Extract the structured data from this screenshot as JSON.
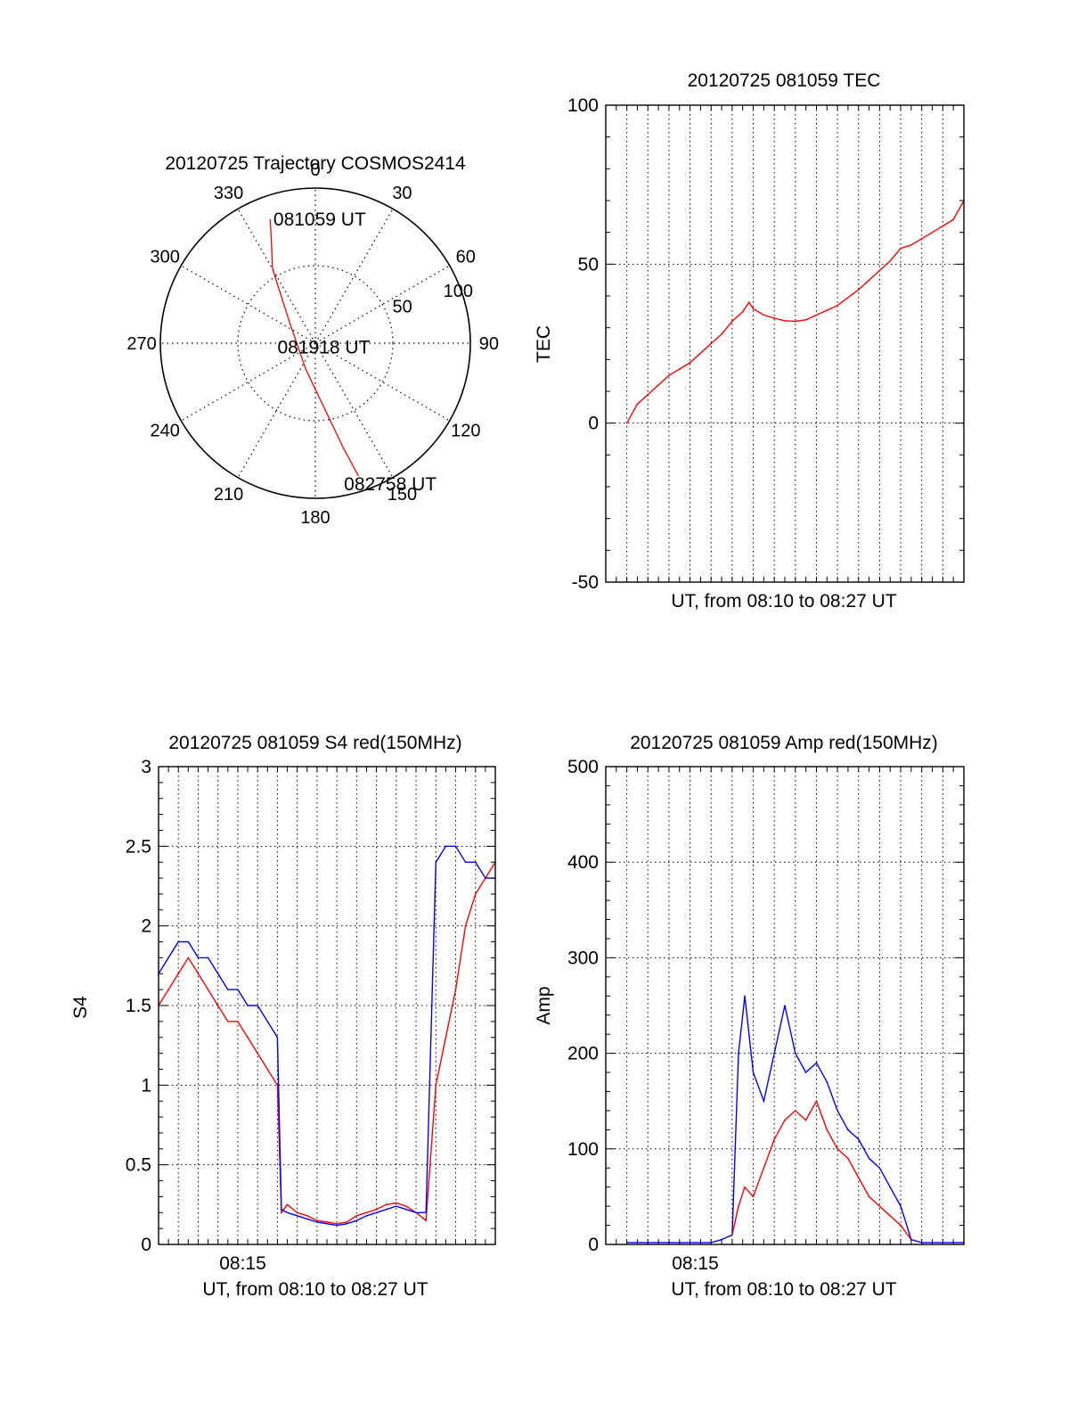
{
  "colors": {
    "primary": "#ff0000",
    "secondary": "#0000ff",
    "axis": "#000000"
  },
  "chart_data": [
    {
      "id": "trajectory",
      "type": "polar",
      "title": "20120725 Trajectory COSMOS2414",
      "azimuth_labels": [
        "0",
        "30",
        "60",
        "90",
        "120",
        "150",
        "180",
        "210",
        "240",
        "270",
        "300",
        "330"
      ],
      "radial_labels": [
        "50",
        "100"
      ],
      "radial_ticks": [
        50,
        100
      ],
      "radial_range": [
        0,
        100
      ],
      "grid": true,
      "path": {
        "name": "",
        "color": "#ff0000",
        "points": [
          {
            "az": 340,
            "r": 85
          },
          {
            "az": 330,
            "r": 55
          },
          {
            "az": 310,
            "r": 22
          },
          {
            "az": 200,
            "r": 18
          },
          {
            "az": 165,
            "r": 70
          },
          {
            "az": 162,
            "r": 90
          }
        ]
      },
      "annotations": [
        {
          "text": "081059 UT",
          "az": 2,
          "r": 80
        },
        {
          "text": "081918 UT",
          "az": 115,
          "r": 6
        },
        {
          "text": "082758 UT",
          "az": 152,
          "r": 103
        }
      ]
    },
    {
      "id": "tec",
      "type": "line",
      "title": "20120725 081059 TEC",
      "xlabel": "UT, from 08:10 to 08:27 UT",
      "ylabel": "TEC",
      "ylim": [
        -50,
        100
      ],
      "yticks": [
        "-50",
        "0",
        "50",
        "100"
      ],
      "ytick_values": [
        -50,
        0,
        50,
        100
      ],
      "xlim": [
        10.0,
        27.0
      ],
      "xticks": [],
      "grid": true,
      "series": [
        {
          "name": "",
          "color": "#ff0000",
          "x": [
            11.0,
            11.5,
            12.0,
            12.5,
            13.0,
            13.5,
            14.0,
            14.5,
            15.0,
            15.5,
            16.0,
            16.5,
            16.8,
            17.0,
            17.5,
            18.0,
            18.5,
            19.0,
            19.5,
            20.0,
            20.5,
            21.0,
            21.5,
            22.0,
            22.5,
            23.0,
            23.5,
            24.0,
            24.5,
            25.0,
            25.5,
            26.0,
            26.5,
            27.0
          ],
          "y": [
            0,
            6,
            9,
            12,
            15,
            17,
            19,
            22,
            25,
            28,
            32,
            35,
            38,
            36,
            34,
            33,
            32.2,
            32,
            32.5,
            34,
            35.5,
            37,
            39.5,
            42,
            45,
            48,
            51,
            55,
            56,
            58,
            60,
            62,
            64,
            70
          ]
        }
      ]
    },
    {
      "id": "s4",
      "type": "line",
      "title": "20120725 081059 S4 red(150MHz)",
      "xlabel": "UT, from 08:10 to 08:27 UT",
      "ylabel": "S4",
      "ylim": [
        0,
        3
      ],
      "yticks": [
        "0",
        "0.5",
        "1",
        "1.5",
        "2",
        "2.5",
        "3"
      ],
      "ytick_values": [
        0,
        0.5,
        1,
        1.5,
        2,
        2.5,
        3
      ],
      "xlim": [
        10.0,
        27.0
      ],
      "xticks": [
        "08:15"
      ],
      "xtick_values": [
        14.25
      ],
      "grid": true,
      "series": [
        {
          "name": "",
          "color": "#ff0000",
          "x": [
            10.0,
            10.5,
            11.0,
            11.5,
            12.0,
            12.5,
            13.0,
            13.5,
            14.0,
            14.5,
            15.0,
            15.5,
            16.0,
            16.2,
            16.5,
            17.0,
            17.5,
            18.0,
            18.5,
            19.0,
            19.5,
            20.0,
            20.5,
            21.0,
            21.5,
            22.0,
            22.5,
            23.0,
            23.5,
            24.0,
            24.5,
            25.0,
            25.5,
            26.0,
            26.5,
            27.0
          ],
          "y": [
            1.5,
            1.6,
            1.7,
            1.8,
            1.7,
            1.6,
            1.5,
            1.4,
            1.4,
            1.3,
            1.2,
            1.1,
            1.0,
            0.2,
            0.25,
            0.2,
            0.18,
            0.15,
            0.14,
            0.13,
            0.14,
            0.18,
            0.2,
            0.22,
            0.25,
            0.26,
            0.24,
            0.2,
            0.15,
            1.0,
            1.3,
            1.6,
            2.0,
            2.2,
            2.3,
            2.4
          ]
        },
        {
          "name": "",
          "color": "#0000ff",
          "x": [
            10.0,
            10.5,
            11.0,
            11.5,
            12.0,
            12.5,
            13.0,
            13.5,
            14.0,
            14.5,
            15.0,
            15.5,
            16.0,
            16.2,
            16.5,
            17.0,
            17.5,
            18.0,
            18.5,
            19.0,
            19.5,
            20.0,
            20.5,
            21.0,
            21.5,
            22.0,
            22.5,
            23.0,
            23.5,
            24.0,
            24.5,
            25.0,
            25.5,
            26.0,
            26.5,
            27.0
          ],
          "y": [
            1.7,
            1.8,
            1.9,
            1.9,
            1.8,
            1.8,
            1.7,
            1.6,
            1.6,
            1.5,
            1.5,
            1.4,
            1.3,
            0.22,
            0.2,
            0.18,
            0.16,
            0.14,
            0.13,
            0.12,
            0.13,
            0.15,
            0.18,
            0.2,
            0.22,
            0.24,
            0.22,
            0.2,
            0.2,
            2.4,
            2.5,
            2.5,
            2.4,
            2.4,
            2.3,
            2.3
          ]
        }
      ]
    },
    {
      "id": "amp",
      "type": "line",
      "title": "20120725 081059 Amp red(150MHz)",
      "xlabel": "UT, from 08:10 to 08:27 UT",
      "ylabel": "Amp",
      "ylim": [
        0,
        500
      ],
      "yticks": [
        "0",
        "100",
        "200",
        "300",
        "400",
        "500"
      ],
      "ytick_values": [
        0,
        100,
        200,
        300,
        400,
        500
      ],
      "xlim": [
        10.0,
        27.0
      ],
      "xticks": [
        "08:15"
      ],
      "xtick_values": [
        14.25
      ],
      "grid": true,
      "series": [
        {
          "name": "",
          "color": "#0000ff",
          "x": [
            11.0,
            12.0,
            13.0,
            14.0,
            15.0,
            15.5,
            16.0,
            16.3,
            16.6,
            17.0,
            17.5,
            18.0,
            18.5,
            19.0,
            19.5,
            20.0,
            20.5,
            21.0,
            21.5,
            22.0,
            22.5,
            23.0,
            23.5,
            24.0,
            24.5,
            25.0,
            26.0,
            27.0
          ],
          "y": [
            2,
            2,
            2,
            2,
            2,
            5,
            10,
            200,
            260,
            180,
            150,
            200,
            250,
            200,
            180,
            190,
            170,
            140,
            120,
            110,
            90,
            80,
            60,
            40,
            5,
            2,
            2,
            2
          ]
        },
        {
          "name": "",
          "color": "#ff0000",
          "x": [
            16.0,
            16.3,
            16.6,
            17.0,
            17.5,
            18.0,
            18.5,
            19.0,
            19.5,
            20.0,
            20.5,
            21.0,
            21.5,
            22.0,
            22.5,
            23.0,
            23.5,
            24.0,
            24.5
          ],
          "y": [
            10,
            40,
            60,
            50,
            80,
            110,
            130,
            140,
            130,
            150,
            120,
            100,
            90,
            70,
            50,
            40,
            30,
            20,
            5
          ]
        }
      ]
    }
  ]
}
